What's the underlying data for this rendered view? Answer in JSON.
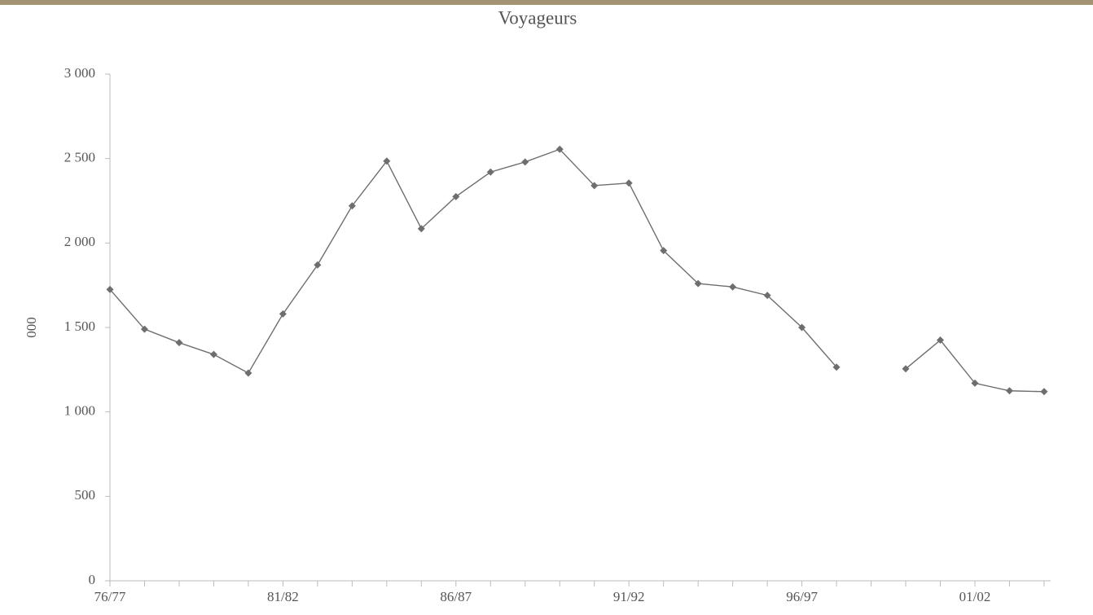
{
  "chart_data": {
    "type": "line",
    "title": "Voyageurs",
    "y_label": "000",
    "categories": [
      "76/77",
      null,
      null,
      null,
      null,
      "81/82",
      null,
      null,
      null,
      null,
      "86/87",
      null,
      null,
      null,
      null,
      "91/92",
      null,
      null,
      null,
      null,
      "96/97",
      null,
      null,
      null,
      null,
      "01/02",
      null,
      null
    ],
    "series": [
      {
        "name": "Voyageurs",
        "color": "#6e6e6e",
        "values": [
          1725,
          1490,
          1410,
          1340,
          1230,
          1580,
          1870,
          2220,
          2485,
          2085,
          2275,
          2420,
          2480,
          2555,
          2340,
          2355,
          1955,
          1760,
          1740,
          1690,
          1500,
          1265,
          null,
          1255,
          1425,
          1170,
          1125,
          1120
        ]
      }
    ],
    "ylim": [
      0,
      3000
    ],
    "yticks": [
      0,
      500,
      {
        "value": 1000,
        "label": "1 000"
      },
      {
        "value": 1500,
        "label": "1 500"
      },
      {
        "value": 2000,
        "label": "2 000"
      },
      {
        "value": 2500,
        "label": "2 500"
      },
      {
        "value": 3000,
        "label": "3 000"
      }
    ],
    "grid": false
  }
}
